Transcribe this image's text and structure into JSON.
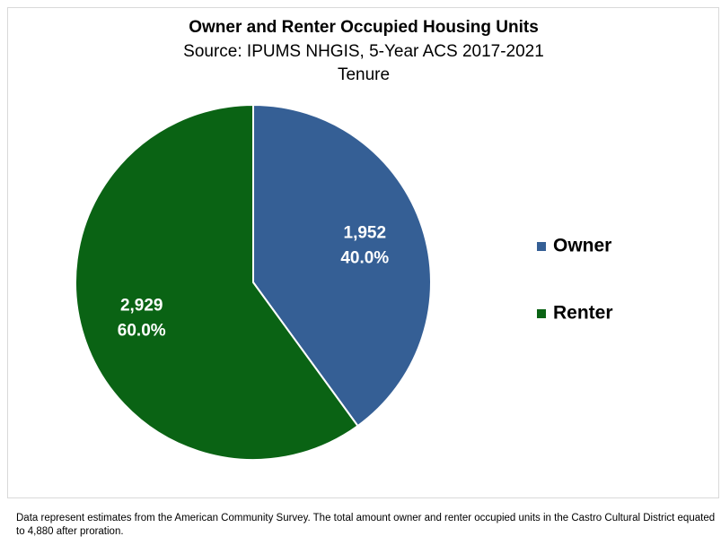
{
  "chart_data": {
    "type": "pie",
    "title": "Owner and Renter Occupied Housing Units",
    "subtitle": "Source: IPUMS NHGIS, 5-Year ACS 2017-2021",
    "series_title": "Tenure",
    "categories": [
      "Owner",
      "Renter"
    ],
    "values": [
      1952,
      2929
    ],
    "value_labels": [
      "1,952",
      "2,929"
    ],
    "percents": [
      40,
      60
    ],
    "percent_labels": [
      "40.0%",
      "60.0%"
    ],
    "colors": [
      "#355f95",
      "#0a6314"
    ],
    "legend": "right",
    "note": "Data represent estimates from the American Community Survey. The total amount owner and renter occupied units in the Castro Cultural District equated to 4,880 after proration."
  }
}
